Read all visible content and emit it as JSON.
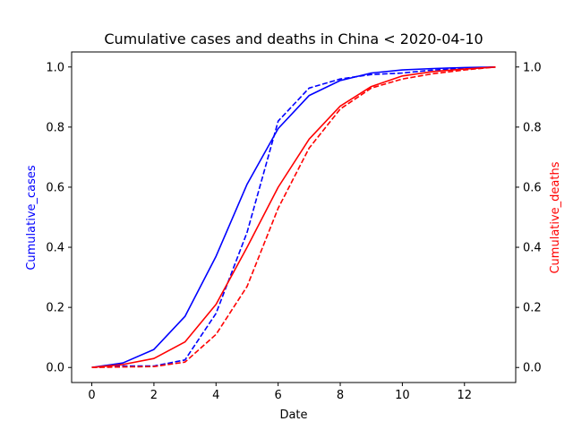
{
  "chart_data": {
    "type": "line",
    "title": "Cumulative cases and deaths in China < 2020-04-10",
    "xlabel": "Date",
    "ylabel_left": "Cumulative_cases",
    "ylabel_right": "Cumulative_deaths",
    "xlim": [
      -0.65,
      13.65
    ],
    "ylim": [
      -0.05,
      1.05
    ],
    "x_ticks": [
      0,
      2,
      4,
      6,
      8,
      10,
      12
    ],
    "y_ticks": [
      0.0,
      0.2,
      0.4,
      0.6,
      0.8,
      1.0
    ],
    "y_tick_labels": [
      "0.0",
      "0.2",
      "0.4",
      "0.6",
      "0.8",
      "1.0"
    ],
    "grid": false,
    "colors": {
      "cases": "#0000ff",
      "deaths": "#ff0000"
    },
    "x": [
      0,
      1,
      2,
      3,
      4,
      5,
      6,
      7,
      8,
      9,
      10,
      11,
      12,
      13
    ],
    "series": [
      {
        "axis": "left",
        "color": "#0000ff",
        "style": "solid",
        "values": [
          0.0,
          0.015,
          0.06,
          0.17,
          0.37,
          0.61,
          0.795,
          0.905,
          0.955,
          0.98,
          0.99,
          0.995,
          0.998,
          1.0
        ]
      },
      {
        "axis": "left",
        "color": "#0000ff",
        "style": "dashed",
        "values": [
          0.0,
          0.005,
          0.005,
          0.025,
          0.18,
          0.45,
          0.82,
          0.93,
          0.96,
          0.975,
          0.98,
          0.99,
          0.995,
          1.0
        ]
      },
      {
        "axis": "right",
        "color": "#ff0000",
        "style": "solid",
        "values": [
          0.0,
          0.01,
          0.03,
          0.085,
          0.21,
          0.4,
          0.6,
          0.76,
          0.87,
          0.935,
          0.97,
          0.985,
          0.993,
          1.0
        ]
      },
      {
        "axis": "right",
        "color": "#ff0000",
        "style": "dashed",
        "values": [
          0.0,
          0.002,
          0.003,
          0.018,
          0.11,
          0.27,
          0.53,
          0.73,
          0.86,
          0.93,
          0.96,
          0.978,
          0.99,
          1.0
        ]
      }
    ]
  }
}
